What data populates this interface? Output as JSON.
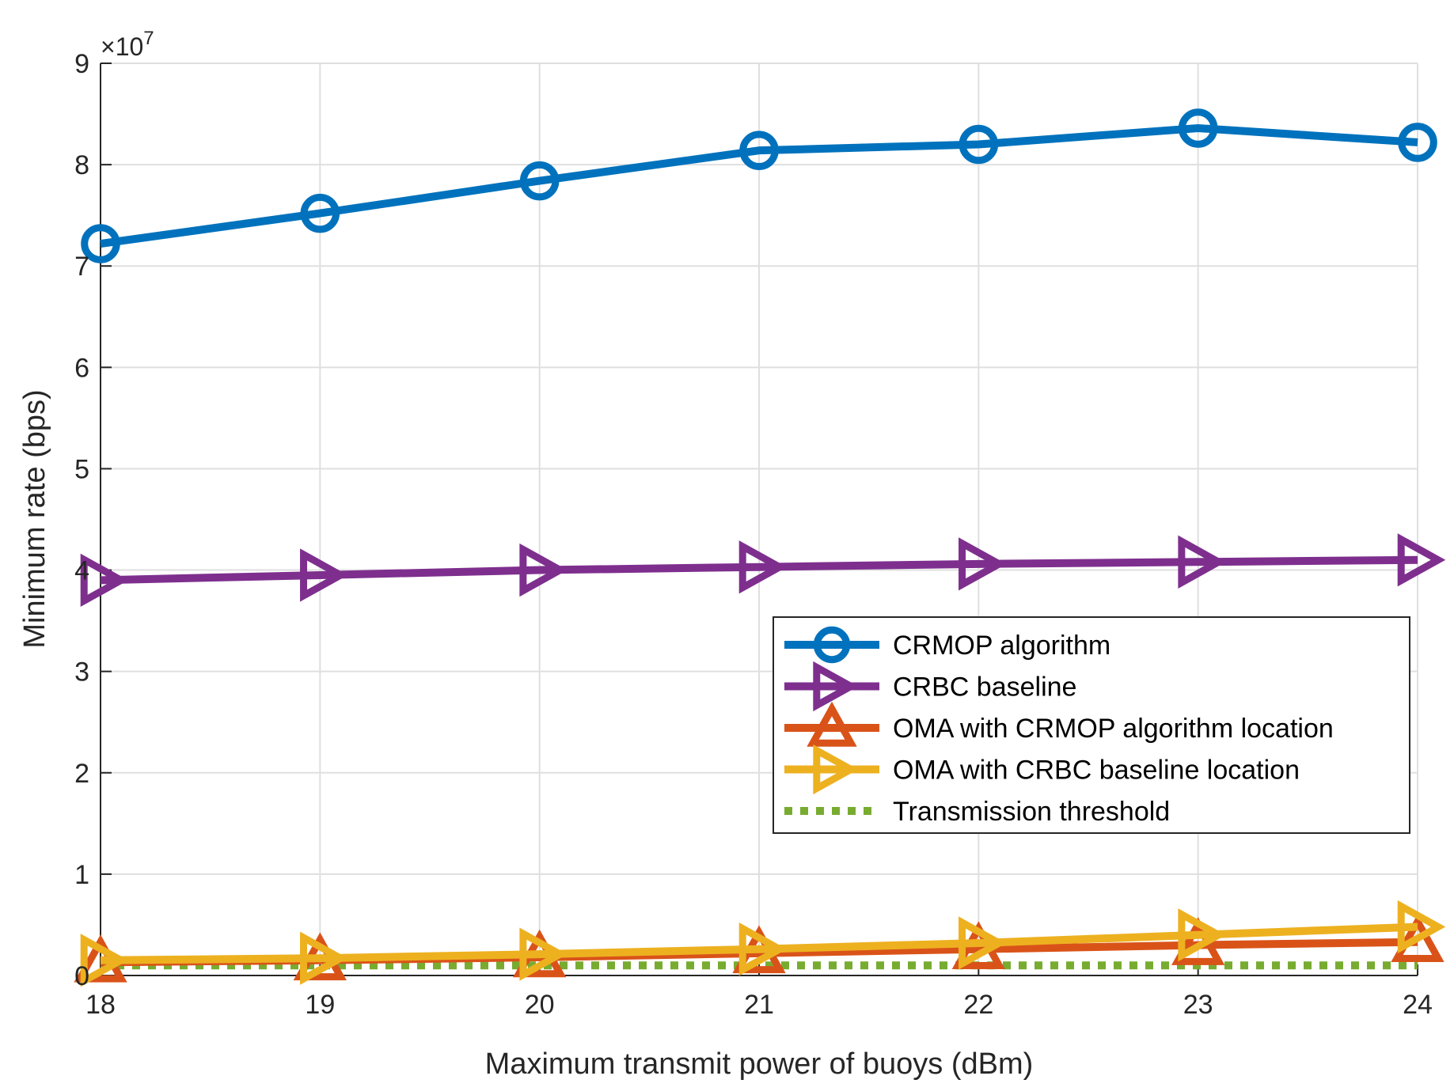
{
  "chart_data": {
    "type": "line",
    "title": "",
    "xlabel": "Maximum transmit power of buoys (dBm)",
    "ylabel": "Minimum rate (bps)",
    "x": [
      18,
      19,
      20,
      21,
      22,
      23,
      24
    ],
    "xlim": [
      18,
      24
    ],
    "ylim": [
      0,
      9
    ],
    "y_scale_label": {
      "base": "×10",
      "exponent": "7"
    },
    "xticks": [
      "18",
      "19",
      "20",
      "21",
      "22",
      "23",
      "24"
    ],
    "yticks": [
      "0",
      "1",
      "2",
      "3",
      "4",
      "5",
      "6",
      "7",
      "8",
      "9"
    ],
    "grid": true,
    "legend_position": "middle-right",
    "series": [
      {
        "name": "CRMOP algorithm",
        "color": "#0072BD",
        "marker": "circle",
        "line": "solid",
        "values": [
          7.22,
          7.52,
          7.84,
          8.14,
          8.2,
          8.36,
          8.22
        ]
      },
      {
        "name": "CRBC baseline",
        "color": "#7E2F8E",
        "marker": "triangle-right",
        "line": "solid",
        "values": [
          3.9,
          3.95,
          4.0,
          4.03,
          4.06,
          4.08,
          4.1
        ]
      },
      {
        "name": "OMA with CRMOP algorithm location",
        "color": "#D95319",
        "marker": "triangle-up",
        "line": "solid",
        "values": [
          0.13,
          0.15,
          0.18,
          0.22,
          0.26,
          0.3,
          0.33
        ]
      },
      {
        "name": "OMA with CRBC baseline location",
        "color": "#EDB120",
        "marker": "triangle-right",
        "line": "solid",
        "values": [
          0.15,
          0.17,
          0.21,
          0.26,
          0.32,
          0.4,
          0.48
        ]
      },
      {
        "name": "Transmission threshold",
        "color": "#77AC30",
        "marker": "none",
        "line": "dotted",
        "values": [
          0.1,
          0.1,
          0.1,
          0.1,
          0.1,
          0.1,
          0.1
        ]
      }
    ]
  }
}
